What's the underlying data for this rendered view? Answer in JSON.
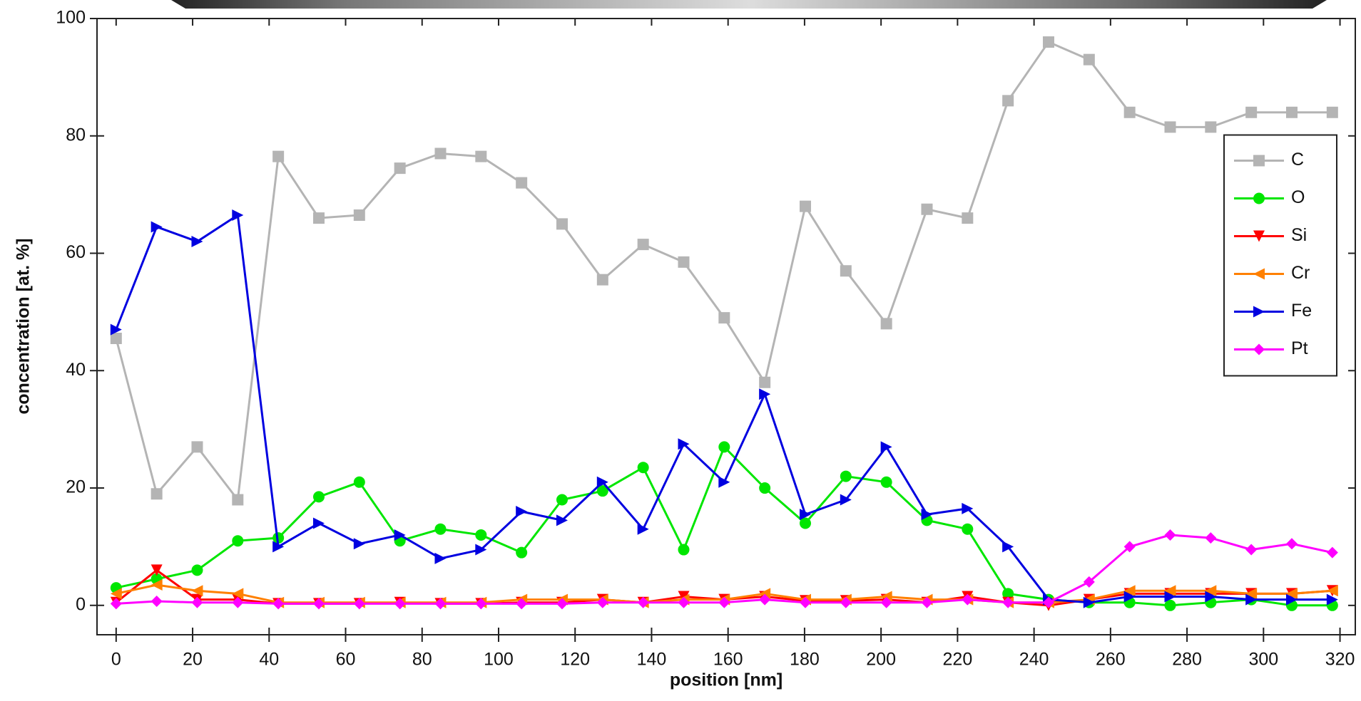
{
  "chart_data": {
    "type": "line",
    "x_label": "position [nm]",
    "y_label": "concentration [at. %]",
    "xlim": [
      -5,
      324
    ],
    "ylim": [
      -5,
      100
    ],
    "xticks": [
      0,
      20,
      40,
      60,
      80,
      100,
      120,
      140,
      160,
      180,
      200,
      220,
      240,
      260,
      280,
      300,
      320
    ],
    "yticks": [
      0,
      20,
      40,
      60,
      80,
      100
    ],
    "legend": "right",
    "x": [
      0,
      10.6,
      21.2,
      31.8,
      42.4,
      53,
      63.6,
      74.2,
      84.8,
      95.4,
      106,
      116.6,
      127.2,
      137.8,
      148.4,
      159,
      169.6,
      180.2,
      190.8,
      201.4,
      212,
      222.6,
      233.2,
      243.8,
      254.4,
      265,
      275.6,
      286.2,
      296.8,
      307.4,
      318
    ],
    "series": [
      {
        "name": "C",
        "color": "#b4b4b4",
        "marker": "square",
        "values": [
          45.5,
          19,
          27,
          18,
          76.5,
          66,
          66.5,
          74.5,
          77,
          76.5,
          72,
          65,
          55.5,
          61.5,
          58.5,
          49,
          38,
          68,
          57,
          48,
          67.5,
          66,
          86,
          96,
          93,
          84,
          81.5,
          81.5,
          84,
          84,
          84
        ]
      },
      {
        "name": "O",
        "color": "#00e600",
        "marker": "circle",
        "values": [
          3,
          4.5,
          6,
          11,
          11.5,
          18.5,
          21,
          11,
          13,
          12,
          9,
          18,
          19.5,
          23.5,
          9.5,
          27,
          20,
          14,
          22,
          21,
          14.5,
          13,
          2,
          1,
          0.5,
          0.5,
          0,
          0.5,
          1,
          0,
          0
        ]
      },
      {
        "name": "Si",
        "color": "#ff0000",
        "marker": "triangle-down",
        "values": [
          0.5,
          6,
          1,
          1,
          0.3,
          0.3,
          0.3,
          0.5,
          0.3,
          0.3,
          0.5,
          0.5,
          1,
          0.5,
          1.5,
          1,
          1.5,
          0.8,
          0.8,
          1,
          0.5,
          1.5,
          0.5,
          0,
          1,
          2,
          2,
          2,
          2,
          2,
          2.5
        ]
      },
      {
        "name": "Cr",
        "color": "#ff8000",
        "marker": "triangle-left",
        "values": [
          2,
          3.5,
          2.5,
          2,
          0.5,
          0.5,
          0.5,
          0.5,
          0.5,
          0.5,
          1,
          1,
          1,
          0.5,
          1,
          1,
          2,
          1,
          1,
          1.5,
          1,
          1,
          0.5,
          0.5,
          1,
          2.5,
          2.5,
          2.5,
          2,
          2,
          2.5
        ]
      },
      {
        "name": "Fe",
        "color": "#0000e0",
        "marker": "triangle-right",
        "values": [
          47,
          64.5,
          62,
          66.5,
          10,
          14,
          10.5,
          12,
          8,
          9.5,
          16,
          14.5,
          21,
          13,
          27.5,
          21,
          36,
          15.5,
          18,
          27,
          15.5,
          16.5,
          10,
          1,
          0.5,
          1.5,
          1.5,
          1.5,
          1,
          1,
          1
        ]
      },
      {
        "name": "Pt",
        "color": "#ff00ff",
        "marker": "diamond",
        "values": [
          0.3,
          0.7,
          0.5,
          0.5,
          0.3,
          0.3,
          0.3,
          0.3,
          0.3,
          0.3,
          0.3,
          0.3,
          0.5,
          0.5,
          0.5,
          0.5,
          1,
          0.5,
          0.5,
          0.5,
          0.5,
          1,
          0.5,
          0.5,
          4,
          10,
          12,
          11.5,
          9.5,
          10.5,
          9
        ]
      }
    ]
  }
}
